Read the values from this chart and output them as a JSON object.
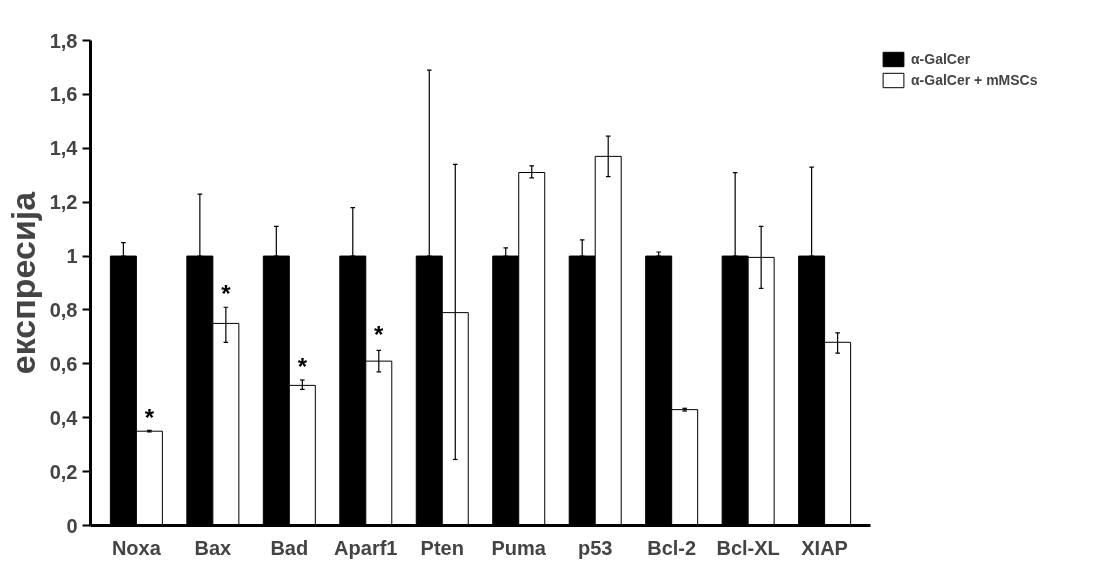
{
  "chart_data": {
    "type": "bar",
    "ylabel": "експресија",
    "categories": [
      "Noxa",
      "Bax",
      "Bad",
      "Aparf1",
      "Pten",
      "Puma",
      "p53",
      "Bcl-2",
      "Bcl-XL",
      "XIAP"
    ],
    "series": [
      {
        "name": "α-GalCer",
        "color": "#000000",
        "values": [
          1,
          1,
          1,
          1,
          1,
          1,
          1,
          1,
          1,
          1
        ],
        "errors": [
          [
            1,
            1.05
          ],
          [
            1,
            1.23
          ],
          [
            1,
            1.11
          ],
          [
            1,
            1.18
          ],
          [
            1,
            1.69
          ],
          [
            1,
            1.03
          ],
          [
            1,
            1.06
          ],
          [
            1,
            1.015
          ],
          [
            1,
            1.31
          ],
          [
            1,
            1.33
          ]
        ]
      },
      {
        "name": "α-GalCer + mMSCs",
        "color": "#ffffff",
        "values": [
          0.35,
          0.75,
          0.52,
          0.61,
          0.79,
          1.31,
          1.37,
          0.43,
          0.995,
          0.68
        ],
        "errors": [
          [
            0.347,
            0.353
          ],
          [
            0.68,
            0.81
          ],
          [
            0.505,
            0.54
          ],
          [
            0.57,
            0.65
          ],
          [
            0.245,
            1.34
          ],
          [
            1.29,
            1.335
          ],
          [
            1.295,
            1.445
          ],
          [
            0.425,
            0.435
          ],
          [
            0.88,
            1.11
          ],
          [
            0.64,
            0.715
          ]
        ]
      }
    ],
    "ylim": [
      0,
      1.8
    ],
    "yticks": [
      0,
      {
        "value": 0.2,
        "label": "0,2"
      },
      {
        "value": 0.4,
        "label": "0,4"
      },
      {
        "value": 0.6,
        "label": "0,6"
      },
      {
        "value": 0.8,
        "label": "0,8"
      },
      1,
      {
        "value": 1.2,
        "label": "1,2"
      },
      {
        "value": 1.4,
        "label": "1,4"
      },
      {
        "value": 1.6,
        "label": "1,6"
      },
      {
        "value": 1.8,
        "label": "1,8"
      }
    ],
    "annotations": [
      {
        "text": "*",
        "x": "Noxa",
        "y": 0.4
      },
      {
        "text": "*",
        "x": "Bax",
        "y": 0.86
      },
      {
        "text": "*",
        "x": "Bad",
        "y": 0.59
      },
      {
        "text": "*",
        "x": "Aparf1",
        "y": 0.71
      }
    ],
    "grid": false,
    "legend": "top right"
  }
}
